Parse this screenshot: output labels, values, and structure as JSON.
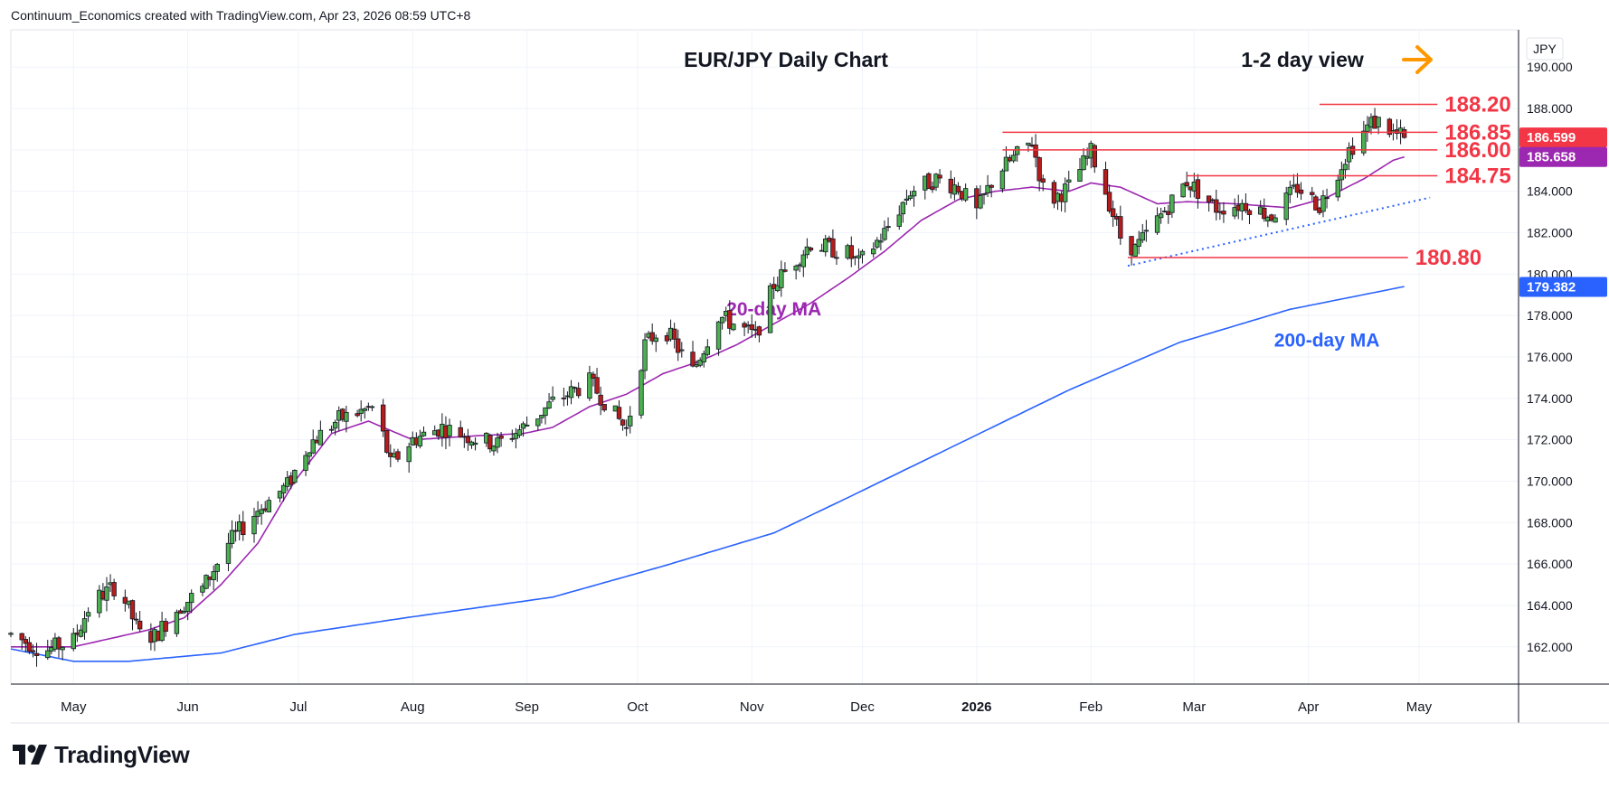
{
  "header": {
    "attribution": "Continuum_Economics created with TradingView.com, Apr 23, 2026 08:59 UTC+8"
  },
  "brand": {
    "logo_text": "TradingView"
  },
  "chart_data": {
    "type": "candlestick",
    "title": "EUR/JPY Daily Chart",
    "subtitle": "1-2 day view",
    "subtitle_arrow": "right",
    "currency_label": "JPY",
    "grid": true,
    "ylim": [
      160.2,
      191.8
    ],
    "y_ticks": [
      "190.000",
      "188.000",
      "186.000",
      "184.000",
      "182.000",
      "180.000",
      "178.000",
      "176.000",
      "174.000",
      "172.000",
      "170.000",
      "168.000",
      "166.000",
      "164.000",
      "162.000"
    ],
    "y_tick_values": [
      190,
      188,
      186,
      184,
      182,
      180,
      178,
      176,
      174,
      172,
      170,
      168,
      166,
      164,
      162
    ],
    "x_ticks": [
      {
        "label": "May",
        "day": 0,
        "bold": false
      },
      {
        "label": "Jun",
        "day": 31,
        "bold": false
      },
      {
        "label": "Jul",
        "day": 61,
        "bold": false
      },
      {
        "label": "Aug",
        "day": 92,
        "bold": false
      },
      {
        "label": "Sep",
        "day": 123,
        "bold": false
      },
      {
        "label": "Oct",
        "day": 153,
        "bold": false
      },
      {
        "label": "Nov",
        "day": 184,
        "bold": false
      },
      {
        "label": "Dec",
        "day": 214,
        "bold": false
      },
      {
        "label": "2026",
        "day": 245,
        "bold": true
      },
      {
        "label": "Feb",
        "day": 276,
        "bold": false
      },
      {
        "label": "Mar",
        "day": 304,
        "bold": false
      },
      {
        "label": "Apr",
        "day": 335,
        "bold": false
      },
      {
        "label": "May",
        "day": 365,
        "bold": false
      }
    ],
    "x_range_days": [
      -17,
      392
    ],
    "price_anchors": [
      [
        -17,
        162.6
      ],
      [
        -8,
        161.8
      ],
      [
        0,
        162.3
      ],
      [
        5,
        164.2
      ],
      [
        12,
        165.0
      ],
      [
        18,
        162.6
      ],
      [
        22,
        162.5
      ],
      [
        28,
        163.8
      ],
      [
        35,
        164.8
      ],
      [
        42,
        167.0
      ],
      [
        50,
        168.6
      ],
      [
        58,
        169.8
      ],
      [
        64,
        171.8
      ],
      [
        72,
        173.0
      ],
      [
        82,
        173.6
      ],
      [
        86,
        170.8
      ],
      [
        92,
        172.0
      ],
      [
        100,
        172.6
      ],
      [
        110,
        172.0
      ],
      [
        115,
        171.8
      ],
      [
        122,
        172.6
      ],
      [
        130,
        173.8
      ],
      [
        140,
        174.8
      ],
      [
        150,
        172.5
      ],
      [
        155,
        176.6
      ],
      [
        160,
        177.5
      ],
      [
        168,
        175.3
      ],
      [
        175,
        178.0
      ],
      [
        185,
        177.0
      ],
      [
        190,
        179.5
      ],
      [
        200,
        181.5
      ],
      [
        210,
        181.0
      ],
      [
        213,
        180.5
      ],
      [
        220,
        182.0
      ],
      [
        227,
        184.0
      ],
      [
        234,
        184.6
      ],
      [
        240,
        184.2
      ],
      [
        245,
        183.0
      ],
      [
        250,
        184.8
      ],
      [
        255,
        185.6
      ],
      [
        260,
        186.4
      ],
      [
        264,
        183.4
      ],
      [
        270,
        184.2
      ],
      [
        276,
        185.9
      ],
      [
        280,
        184.0
      ],
      [
        284,
        181.8
      ],
      [
        288,
        181.2
      ],
      [
        294,
        182.6
      ],
      [
        302,
        184.5
      ],
      [
        310,
        183.2
      ],
      [
        318,
        183.4
      ],
      [
        325,
        182.8
      ],
      [
        332,
        184.2
      ],
      [
        338,
        183.3
      ],
      [
        346,
        186.0
      ],
      [
        352,
        187.3
      ],
      [
        355,
        187.4
      ],
      [
        358,
        186.8
      ],
      [
        361,
        186.6
      ]
    ],
    "ohlc_note": "Daily EUR/JPY candles reconstructed along the price path; last close 186.599",
    "last_price": 186.599,
    "ma20_value": 185.658,
    "ma200_value": 179.382,
    "moving_averages": [
      {
        "name": "20-day MA",
        "color": "#9c27b0",
        "label_x_day": 190,
        "label_y": 178.0,
        "anchors": [
          [
            -17,
            162.0
          ],
          [
            0,
            162.0
          ],
          [
            20,
            162.8
          ],
          [
            30,
            163.4
          ],
          [
            40,
            165.0
          ],
          [
            50,
            167.0
          ],
          [
            60,
            170.0
          ],
          [
            70,
            172.3
          ],
          [
            80,
            172.9
          ],
          [
            92,
            172.0
          ],
          [
            110,
            172.2
          ],
          [
            122,
            172.3
          ],
          [
            130,
            172.6
          ],
          [
            140,
            173.6
          ],
          [
            150,
            174.2
          ],
          [
            160,
            175.2
          ],
          [
            170,
            175.8
          ],
          [
            180,
            176.6
          ],
          [
            190,
            177.6
          ],
          [
            200,
            178.6
          ],
          [
            210,
            179.8
          ],
          [
            220,
            181.1
          ],
          [
            230,
            182.6
          ],
          [
            240,
            183.6
          ],
          [
            250,
            184.0
          ],
          [
            260,
            184.2
          ],
          [
            270,
            184.0
          ],
          [
            276,
            184.4
          ],
          [
            284,
            184.2
          ],
          [
            294,
            183.4
          ],
          [
            302,
            183.5
          ],
          [
            315,
            183.4
          ],
          [
            330,
            183.2
          ],
          [
            340,
            183.7
          ],
          [
            350,
            184.6
          ],
          [
            358,
            185.5
          ],
          [
            361,
            185.66
          ]
        ]
      },
      {
        "name": "200-day MA",
        "color": "#2962ff",
        "label_x_day": 340,
        "label_y": 176.5,
        "anchors": [
          [
            -17,
            161.9
          ],
          [
            0,
            161.3
          ],
          [
            15,
            161.3
          ],
          [
            40,
            161.7
          ],
          [
            60,
            162.6
          ],
          [
            90,
            163.4
          ],
          [
            130,
            164.4
          ],
          [
            160,
            165.9
          ],
          [
            190,
            167.5
          ],
          [
            210,
            169.2
          ],
          [
            240,
            171.8
          ],
          [
            270,
            174.4
          ],
          [
            300,
            176.7
          ],
          [
            330,
            178.3
          ],
          [
            361,
            179.4
          ]
        ]
      }
    ],
    "trendline": {
      "style": "dotted",
      "color": "#2962ff",
      "points": [
        [
          286,
          180.4
        ],
        [
          368,
          183.7
        ]
      ]
    },
    "levels": [
      {
        "label": "188.20",
        "value": 188.2,
        "x_start_day": 338,
        "x_end_day": 370
      },
      {
        "label": "186.85",
        "value": 186.85,
        "x_start_day": 252,
        "x_end_day": 370
      },
      {
        "label": "186.00",
        "value": 186.0,
        "x_start_day": 252,
        "x_end_day": 370
      },
      {
        "label": "184.75",
        "value": 184.75,
        "x_start_day": 302,
        "x_end_day": 370
      },
      {
        "label": "180.80",
        "value": 180.8,
        "x_start_day": 286,
        "x_end_day": 362
      }
    ],
    "level_color": "#f23645",
    "price_tags": [
      {
        "label": "186.599",
        "value": 186.599,
        "bg": "#f23645",
        "fg": "#ffffff"
      },
      {
        "label": "185.658",
        "value": 185.658,
        "bg": "#9c27b0",
        "fg": "#ffffff"
      },
      {
        "label": "179.382",
        "value": 179.382,
        "bg": "#2962ff",
        "fg": "#ffffff"
      }
    ],
    "colors": {
      "up": "#4caf50",
      "down": "#b71c1c",
      "wick": "#131722",
      "grid": "#f0f3fa",
      "axis_text": "#131722",
      "arrow": "#ff9800"
    }
  }
}
